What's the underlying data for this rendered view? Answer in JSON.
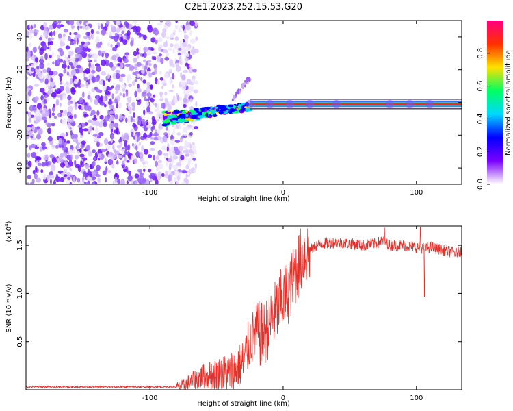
{
  "chart_data": [
    {
      "type": "heatmap",
      "title": "C2E1.2023.252.15.53.G20",
      "xlabel": "Height of straight line (km)",
      "ylabel": "Frequency (Hz)",
      "xlim": [
        -193,
        134
      ],
      "ylim": [
        -50,
        50
      ],
      "x_ticks": [
        -100,
        0,
        100
      ],
      "x_tick_labels": [
        "-100",
        "0",
        "100"
      ],
      "y_ticks": [
        -40,
        -20,
        0,
        20,
        40
      ],
      "y_tick_labels": [
        "-40",
        "-20",
        "0",
        "20",
        "40"
      ],
      "colorbar": {
        "label": "Normalized spectral amplitude",
        "range": [
          0,
          1
        ],
        "ticks": [
          0.0,
          0.2,
          0.4,
          0.6,
          0.8
        ],
        "tick_labels": [
          "0.0",
          "0.2",
          "0.4",
          "0.6",
          "0.8"
        ],
        "colors": [
          "#ffffff",
          "#7b00ff",
          "#0000ff",
          "#00d8ff",
          "#00ff60",
          "#ffe000",
          "#ff3000",
          "#ff0080"
        ]
      },
      "regions": [
        {
          "name": "noise",
          "x": [
            -193,
            -75
          ],
          "y": [
            -50,
            50
          ],
          "amplitude": 0.15
        },
        {
          "name": "transition",
          "x": [
            -90,
            -20
          ],
          "y": [
            -12,
            0
          ],
          "amplitude": 0.4
        },
        {
          "name": "branch",
          "x": [
            -38,
            -24
          ],
          "y": [
            2,
            16
          ],
          "amplitude": 0.15
        },
        {
          "name": "carrier",
          "x": [
            -25,
            134
          ],
          "y": [
            -1,
            -1
          ],
          "amplitude": 0.9
        }
      ]
    },
    {
      "type": "line",
      "xlabel": "Height of straight line (km)",
      "ylabel": "SNR (10 * v/v)",
      "y_multiplier": "(x10",
      "y_multiplier_exp": "4",
      "y_multiplier_close": ")",
      "xlim": [
        -193,
        134
      ],
      "ylim": [
        0,
        1.7
      ],
      "x_ticks": [
        -100,
        0,
        100
      ],
      "x_tick_labels": [
        "-100",
        "0",
        "100"
      ],
      "y_ticks": [
        0.5,
        1.0,
        1.5
      ],
      "y_tick_labels": [
        "0.5",
        "1.0",
        "1.5"
      ],
      "line_color": "#e8302a",
      "profile": {
        "x": [
          -193,
          -80,
          -75,
          -70,
          -60,
          -50,
          -40,
          -35,
          -30,
          -25,
          -20,
          -15,
          -10,
          -5,
          0,
          5,
          10,
          15,
          20,
          25,
          30,
          40,
          50,
          60,
          70,
          75,
          80,
          90,
          100,
          105,
          110,
          120,
          130,
          134
        ],
        "y": [
          0.03,
          0.03,
          0.04,
          0.08,
          0.14,
          0.16,
          0.18,
          0.22,
          0.28,
          0.5,
          0.6,
          0.55,
          0.7,
          0.82,
          0.95,
          1.05,
          1.25,
          1.4,
          1.45,
          1.5,
          1.52,
          1.53,
          1.52,
          1.5,
          1.52,
          1.55,
          1.5,
          1.5,
          1.48,
          1.47,
          1.48,
          1.45,
          1.42,
          1.45
        ]
      },
      "spikes": [
        {
          "x": 76,
          "y": 1.68
        },
        {
          "x": 103,
          "y": 1.69
        },
        {
          "x": 106,
          "y": 0.97
        }
      ]
    }
  ]
}
